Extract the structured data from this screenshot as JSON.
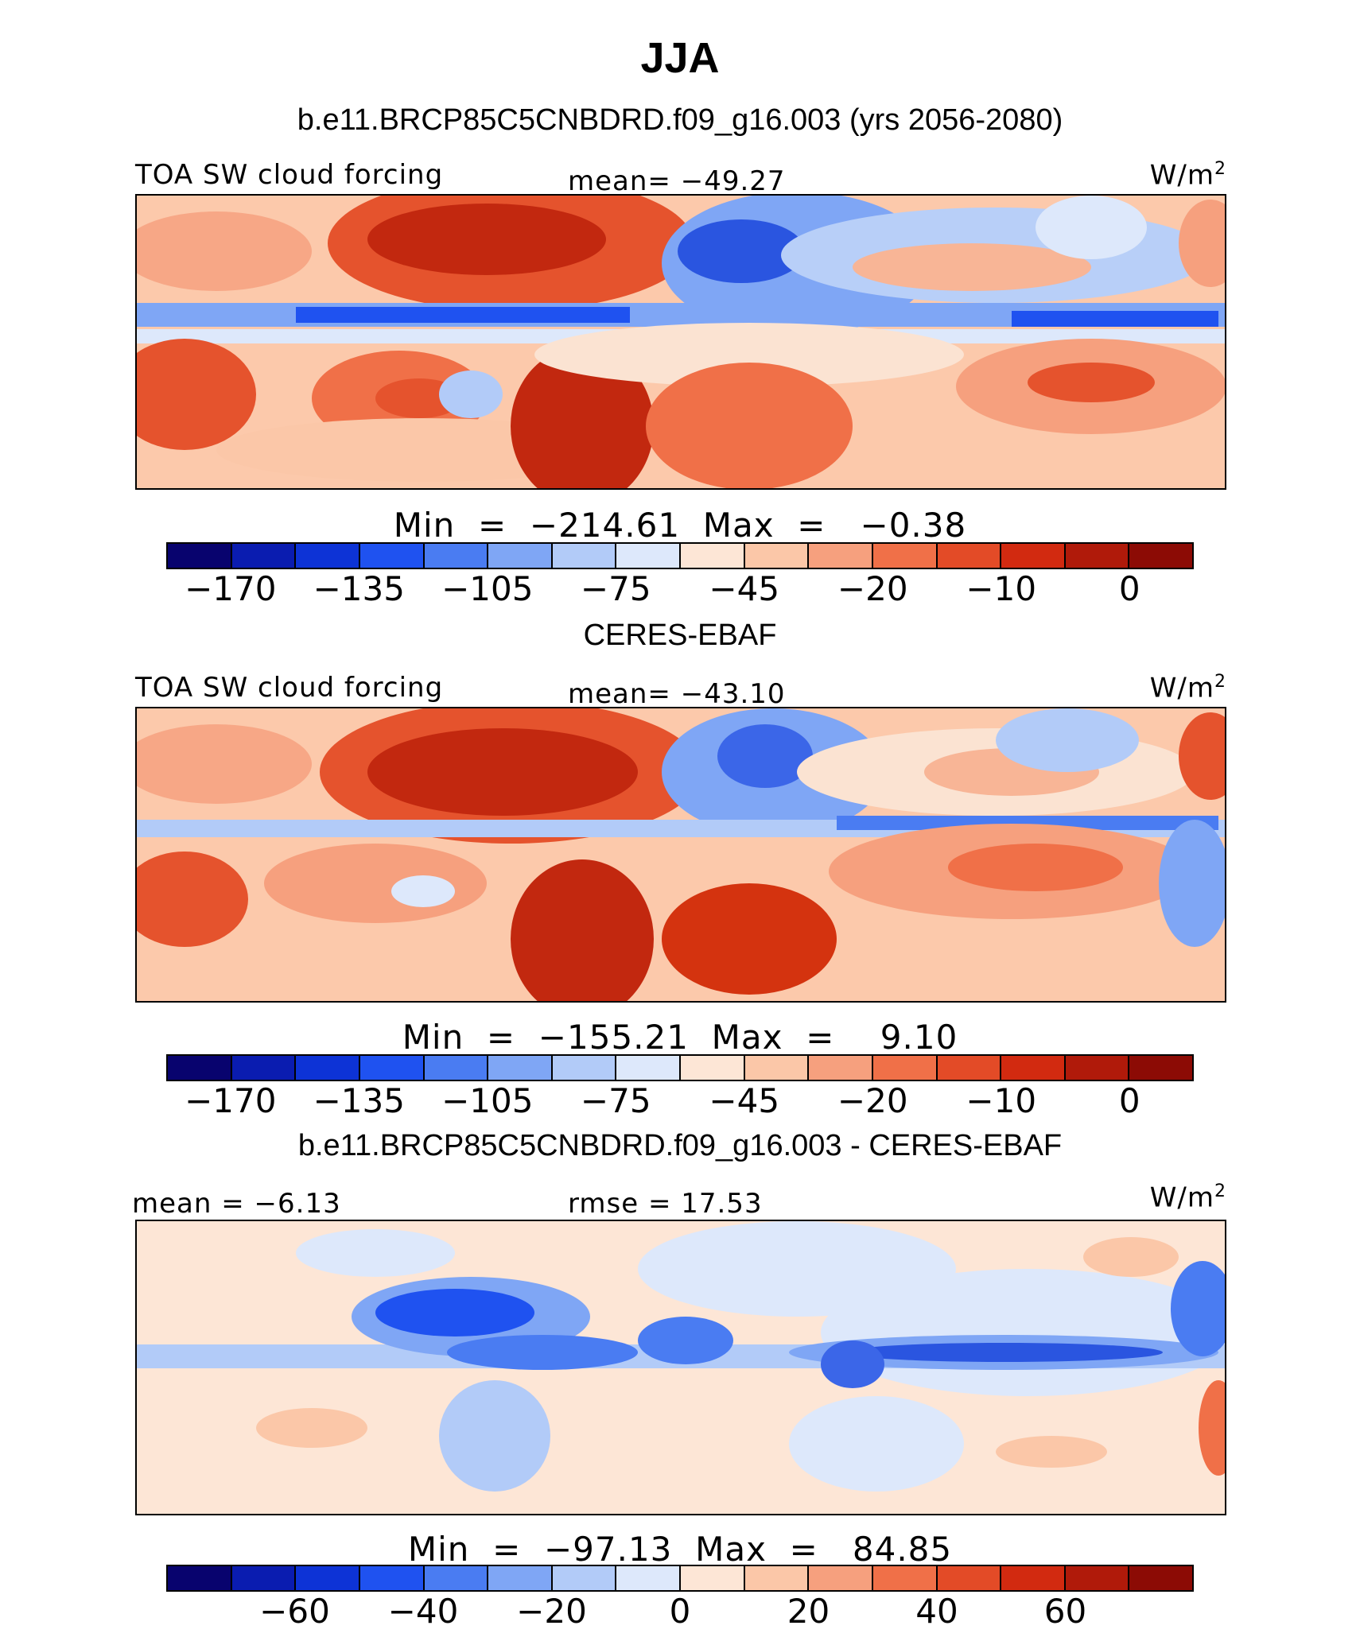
{
  "title": "JJA",
  "panels": [
    {
      "subtitle": "b.e11.BRCP85C5CNBDRD.f09_g16.003 (yrs 2056-2080)",
      "left_label": "TOA SW cloud forcing",
      "center_label": "mean= −49.27",
      "units": "W/m",
      "units_sup": "2",
      "minmax": "Min  =  −214.61  Max  =   −0.38"
    },
    {
      "subtitle": "CERES-EBAF",
      "left_label": "TOA SW cloud forcing",
      "center_label": "mean= −43.10",
      "units": "W/m",
      "units_sup": "2",
      "minmax": "Min  =  −155.21  Max  =    9.10"
    },
    {
      "subtitle": "b.e11.BRCP85C5CNBDRD.f09_g16.003 - CERES-EBAF",
      "left_label": "mean =  −6.13",
      "center_label": "rmse =  17.53",
      "units": "W/m",
      "units_sup": "2",
      "minmax": "Min  =  −97.13  Max  =   84.85"
    }
  ],
  "colorbar_colors": [
    "#08036e",
    "#0a1cb0",
    "#0d33d6",
    "#1f52f0",
    "#4a7cf2",
    "#7fa6f5",
    "#b2cbf8",
    "#dde8fb",
    "#fde6d6",
    "#fbc7a8",
    "#f6a07e",
    "#f07048",
    "#e34b27",
    "#d22a10",
    "#b01a0a",
    "#8c0b05"
  ],
  "colorbars": [
    {
      "ticks": [
        {
          "label": "−170",
          "after_box": 1
        },
        {
          "label": "−135",
          "after_box": 3
        },
        {
          "label": "−105",
          "after_box": 5
        },
        {
          "label": "−75",
          "after_box": 7
        },
        {
          "label": "−45",
          "after_box": 9
        },
        {
          "label": "−20",
          "after_box": 11
        },
        {
          "label": "−10",
          "after_box": 13
        },
        {
          "label": "0",
          "after_box": 15
        }
      ]
    },
    {
      "ticks": [
        {
          "label": "−170",
          "after_box": 1
        },
        {
          "label": "−135",
          "after_box": 3
        },
        {
          "label": "−105",
          "after_box": 5
        },
        {
          "label": "−75",
          "after_box": 7
        },
        {
          "label": "−45",
          "after_box": 9
        },
        {
          "label": "−20",
          "after_box": 11
        },
        {
          "label": "−10",
          "after_box": 13
        },
        {
          "label": "0",
          "after_box": 15
        }
      ]
    },
    {
      "ticks": [
        {
          "label": "−60",
          "after_box": 2
        },
        {
          "label": "−40",
          "after_box": 4
        },
        {
          "label": "−20",
          "after_box": 6
        },
        {
          "label": "0",
          "after_box": 8
        },
        {
          "label": "20",
          "after_box": 10
        },
        {
          "label": "40",
          "after_box": 12
        },
        {
          "label": "60",
          "after_box": 14
        }
      ]
    }
  ],
  "chart_data": [
    {
      "type": "heatmap",
      "title": "TOA SW cloud forcing",
      "units": "W/m2",
      "mean": -49.27,
      "min": -214.61,
      "max": -0.38,
      "colorbar_ticks": [
        -170,
        -135,
        -105,
        -75,
        -45,
        -20,
        -10,
        0
      ]
    },
    {
      "type": "heatmap",
      "title": "TOA SW cloud forcing",
      "units": "W/m2",
      "mean": -43.1,
      "min": -155.21,
      "max": 9.1,
      "colorbar_ticks": [
        -170,
        -135,
        -105,
        -75,
        -45,
        -20,
        -10,
        0
      ]
    },
    {
      "type": "heatmap",
      "units": "W/m2",
      "mean": -6.13,
      "rmse": 17.53,
      "min": -97.13,
      "max": 84.85,
      "colorbar_ticks": [
        -60,
        -40,
        -20,
        0,
        20,
        40,
        60
      ]
    }
  ]
}
